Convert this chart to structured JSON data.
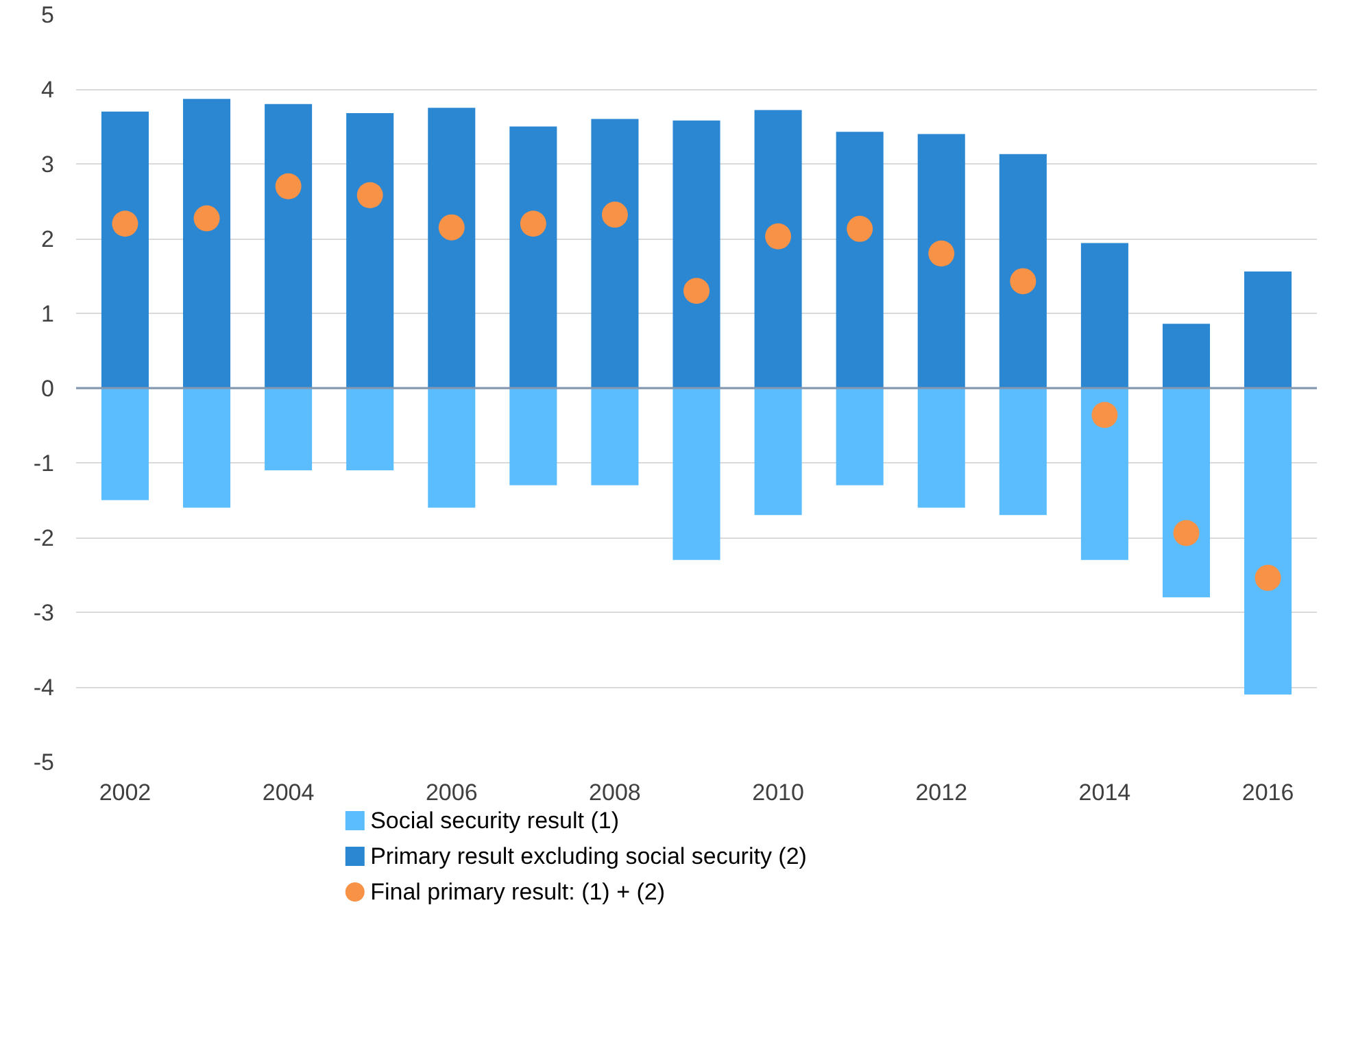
{
  "chart_data": {
    "type": "bar",
    "stacked": true,
    "x": [
      2002,
      2003,
      2004,
      2005,
      2006,
      2007,
      2008,
      2009,
      2010,
      2011,
      2012,
      2013,
      2014,
      2015,
      2016
    ],
    "xlim": [
      2001.4,
      2016.6
    ],
    "xticks": [
      2002,
      2004,
      2006,
      2008,
      2010,
      2012,
      2014,
      2016
    ],
    "ylim": [
      -5,
      5
    ],
    "yticks": [
      -5,
      -4,
      -3,
      -2,
      -1,
      0,
      1,
      2,
      3,
      4,
      5
    ],
    "grid": "y",
    "legend": "bottom",
    "ref_lines": [
      {
        "axis": "y",
        "value": 0,
        "color": "#8497b0"
      }
    ],
    "series": [
      {
        "name": "Social security result (1)",
        "color": "#5bbdfd",
        "values": [
          -1.5,
          -1.6,
          -1.1,
          -1.1,
          -1.6,
          -1.3,
          -1.3,
          -2.3,
          -1.7,
          -1.3,
          -1.6,
          -1.7,
          -2.3,
          -2.8,
          -4.1
        ]
      },
      {
        "name": "Primary result excluding social security (2)",
        "color": "#2b87d1",
        "values": [
          3.7,
          3.87,
          3.8,
          3.68,
          3.75,
          3.5,
          3.6,
          3.58,
          3.72,
          3.43,
          3.4,
          3.13,
          1.94,
          0.86,
          1.56
        ]
      },
      {
        "name": "Final primary result: (1) + (2)",
        "type": "scatter",
        "marker": "circle",
        "color": "#f79246",
        "values": [
          2.2,
          2.27,
          2.7,
          2.58,
          2.15,
          2.2,
          2.32,
          1.3,
          2.03,
          2.13,
          1.8,
          1.43,
          -0.36,
          -1.94,
          -2.54
        ]
      }
    ]
  }
}
